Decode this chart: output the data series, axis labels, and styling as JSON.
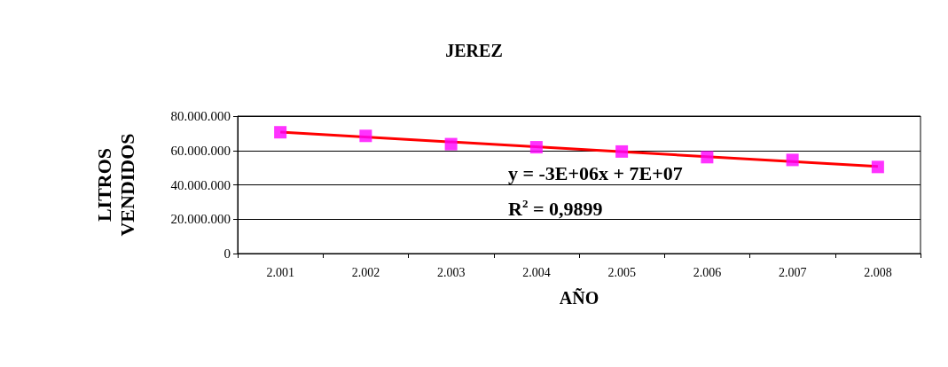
{
  "chart_data": {
    "type": "scatter",
    "title": "JEREZ",
    "xlabel": "AÑO",
    "ylabel": "LITROS VENDIDOS",
    "categories": [
      "2.001",
      "2.002",
      "2.003",
      "2.004",
      "2.005",
      "2.006",
      "2.007",
      "2.008"
    ],
    "series": [
      {
        "color": "#ff00ff",
        "marker": "square",
        "values": [
          70600000,
          68500000,
          63700000,
          61900000,
          59400000,
          56100000,
          54500000,
          50400000
        ]
      },
      {
        "type": "line",
        "color": "#ff0000",
        "marker": "none",
        "x": [
          "2.001",
          "2.008"
        ],
        "values": [
          70700000,
          50700000
        ]
      }
    ],
    "ylim": [
      0,
      80000000
    ],
    "yticks": [
      0,
      {
        "value": 20000000,
        "label": "20.000.000"
      },
      {
        "value": 40000000,
        "label": "40.000.000"
      },
      {
        "value": 60000000,
        "label": "60.000.000"
      },
      {
        "value": 80000000,
        "label": "80.000.000"
      }
    ],
    "grid": "y",
    "annotations": [
      "y = -3E+06x + 7E+07",
      "R$^{2}$ = 0,9899"
    ]
  }
}
